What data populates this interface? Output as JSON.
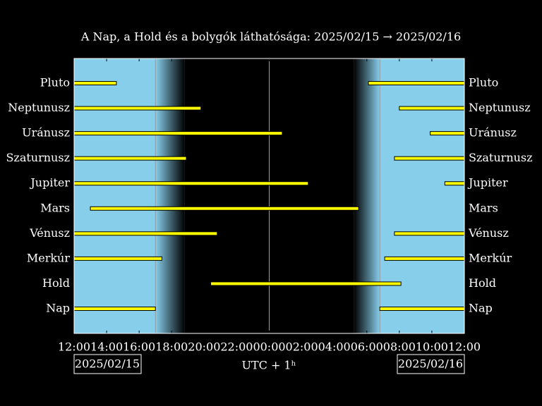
{
  "chart_data": {
    "type": "timeline",
    "title": "A Nap, a Hold és a bolygók láthatósága: 2025/02/15 → 2025/02/16",
    "xlabel": "UTC + 1ʰ",
    "start_date": "2025/02/15",
    "end_date": "2025/02/16",
    "xlim": [
      12,
      36
    ],
    "xticks": [
      {
        "value": 12,
        "label": "12:00"
      },
      {
        "value": 14,
        "label": "14:00"
      },
      {
        "value": 16,
        "label": "16:00"
      },
      {
        "value": 18,
        "label": "18:00"
      },
      {
        "value": 20,
        "label": "20:00"
      },
      {
        "value": 22,
        "label": "22:00"
      },
      {
        "value": 24,
        "label": "00:00"
      },
      {
        "value": 26,
        "label": "02:00"
      },
      {
        "value": 28,
        "label": "04:00"
      },
      {
        "value": 30,
        "label": "06:00"
      },
      {
        "value": 32,
        "label": "08:00"
      },
      {
        "value": 34,
        "label": "10:00"
      },
      {
        "value": 36,
        "label": "12:00"
      }
    ],
    "daylight_color": "#87ceeb",
    "night_color": "#000000",
    "bar_color": "#ffff00",
    "markers": [
      17.0,
      24,
      30.8
    ],
    "night": [
      18.8,
      29.2
    ],
    "categories": [
      "Pluto",
      "Neptunusz",
      "Uránusz",
      "Szaturnusz",
      "Jupiter",
      "Mars",
      "Vénusz",
      "Merkúr",
      "Hold",
      "Nap"
    ],
    "segments": [
      [
        [
          12,
          14.6
        ],
        [
          30.1,
          36
        ]
      ],
      [
        [
          12,
          19.8
        ],
        [
          32.0,
          36
        ]
      ],
      [
        [
          12,
          24.8
        ],
        [
          33.9,
          36
        ]
      ],
      [
        [
          12,
          18.9
        ],
        [
          31.7,
          36
        ]
      ],
      [
        [
          12,
          26.4
        ],
        [
          34.8,
          36
        ]
      ],
      [
        [
          13.0,
          29.5
        ]
      ],
      [
        [
          12,
          20.8
        ],
        [
          31.7,
          36
        ]
      ],
      [
        [
          12,
          17.4
        ],
        [
          31.1,
          36
        ]
      ],
      [
        [
          20.4,
          32.1
        ]
      ],
      [
        [
          12,
          17.0
        ],
        [
          30.8,
          36
        ]
      ]
    ]
  }
}
